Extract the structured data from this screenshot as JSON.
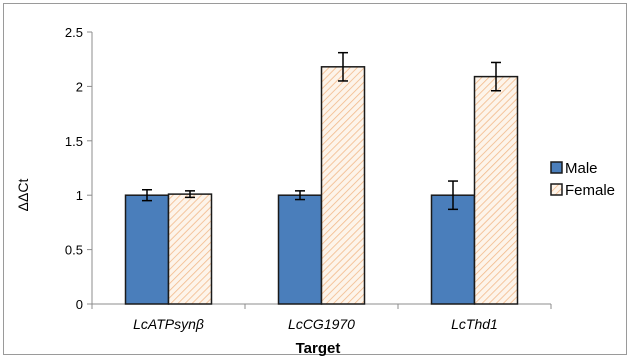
{
  "chart_data": {
    "type": "bar",
    "xlabel": "Target",
    "ylabel": "ΔΔCt",
    "ylim": [
      0,
      2.5
    ],
    "yticks": [
      "0",
      "0.5",
      "1",
      "1.5",
      "2",
      "2.5"
    ],
    "categories": [
      "LcATPsynβ",
      "LcCG1970",
      "LcThd1"
    ],
    "grid": false,
    "legend_position": "right",
    "series": [
      {
        "name": "Male",
        "values": [
          1.0,
          1.0,
          1.0
        ],
        "errors": [
          0.05,
          0.04,
          0.13
        ],
        "color": "#4a7ebb",
        "pattern": "solid"
      },
      {
        "name": "Female",
        "values": [
          1.01,
          2.18,
          2.09
        ],
        "errors": [
          0.03,
          0.13,
          0.13
        ],
        "color": "#f7cfa8",
        "pattern": "diagonal-hatch"
      }
    ]
  }
}
